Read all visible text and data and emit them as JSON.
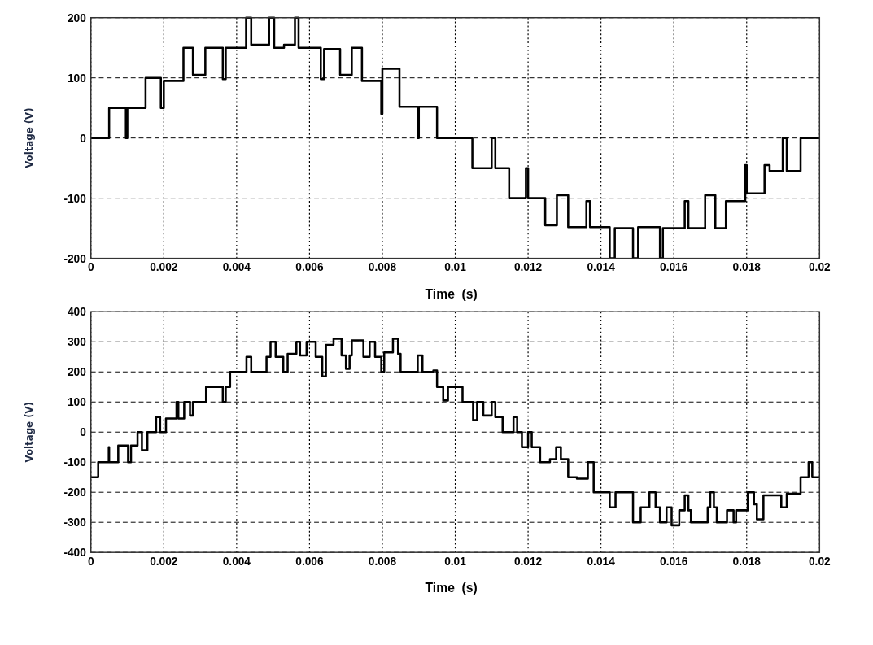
{
  "chart_data": [
    {
      "type": "step",
      "xlabel": "Time  (s)",
      "ylabel": "Voltage (V)",
      "xlim": [
        0,
        0.02
      ],
      "ylim": [
        -200,
        200
      ],
      "xticks": [
        0,
        0.002,
        0.004,
        0.006,
        0.008,
        0.01,
        0.012,
        0.014,
        0.016,
        0.018,
        0.02
      ],
      "yticks": [
        -200,
        -100,
        0,
        100,
        200
      ],
      "grid": true,
      "series": [
        {
          "color": "#000000",
          "x": [
            0,
            0.0005,
            0.00096,
            0.001,
            0.0015,
            0.00192,
            0.002,
            0.00254,
            0.0028,
            0.00314,
            0.00362,
            0.0037,
            0.00426,
            0.0044,
            0.00489,
            0.00503,
            0.0053,
            0.0056,
            0.0057,
            0.00631,
            0.0064,
            0.00684,
            0.00716,
            0.00744,
            0.00797,
            0.008,
            0.00847,
            0.00897,
            0.009,
            0.0095,
            0.01047,
            0.011,
            0.0111,
            0.01148,
            0.01194,
            0.012,
            0.01247,
            0.01279,
            0.0131,
            0.0136,
            0.0137,
            0.01424,
            0.01438,
            0.01488,
            0.01502,
            0.01562,
            0.0157,
            0.0163,
            0.0164,
            0.01686,
            0.01714,
            0.01743,
            0.01796,
            0.018,
            0.01849,
            0.01863,
            0.01899,
            0.0191,
            0.01948,
            0.02
          ],
          "values": [
            0,
            50,
            0,
            50,
            100,
            50,
            95,
            150,
            105,
            150,
            98,
            150,
            200,
            155,
            200,
            150,
            155,
            200,
            150,
            98,
            148,
            105,
            150,
            95,
            40,
            115,
            52,
            0,
            52,
            0,
            -50,
            0,
            -50,
            -100,
            -50,
            -100,
            -145,
            -95,
            -148,
            -105,
            -148,
            -200,
            -150,
            -200,
            -148,
            -200,
            -150,
            -105,
            -150,
            -95,
            -150,
            -105,
            -45,
            -92,
            -45,
            -55,
            0,
            -55,
            0,
            0
          ]
        }
      ]
    },
    {
      "type": "step",
      "xlabel": "Time  (s)",
      "ylabel": "Voltage (V)",
      "xlim": [
        0,
        0.02
      ],
      "ylim": [
        -400,
        400
      ],
      "xticks": [
        0,
        0.002,
        0.004,
        0.006,
        0.008,
        0.01,
        0.012,
        0.014,
        0.016,
        0.018,
        0.02
      ],
      "yticks": [
        -400,
        -300,
        -200,
        -100,
        0,
        100,
        200,
        300,
        400
      ],
      "grid": true,
      "series": [
        {
          "color": "#000000",
          "x": [
            0,
            0.0002,
            0.00049,
            0.0005,
            0.00075,
            0.00102,
            0.0011,
            0.00128,
            0.0014,
            0.00155,
            0.00179,
            0.0019,
            0.00206,
            0.00235,
            0.0024,
            0.00256,
            0.00272,
            0.0028,
            0.00316,
            0.00362,
            0.0037,
            0.00382,
            0.00427,
            0.0044,
            0.00482,
            0.00493,
            0.00507,
            0.00528,
            0.0054,
            0.00564,
            0.00574,
            0.00592,
            0.00617,
            0.00635,
            0.00645,
            0.00666,
            0.00688,
            0.007,
            0.0071,
            0.00716,
            0.00748,
            0.00765,
            0.0078,
            0.00797,
            0.00805,
            0.00829,
            0.00843,
            0.0085,
            0.00897,
            0.0091,
            0.0094,
            0.0095,
            0.00967,
            0.0098,
            0.0102,
            0.01049,
            0.0106,
            0.01077,
            0.011,
            0.0111,
            0.0113,
            0.0116,
            0.0117,
            0.01183,
            0.012,
            0.0121,
            0.01233,
            0.0126,
            0.01277,
            0.0129,
            0.0131,
            0.01334,
            0.01364,
            0.0138,
            0.01424,
            0.0144,
            0.01488,
            0.01509,
            0.01533,
            0.0155,
            0.01562,
            0.0158,
            0.01594,
            0.01615,
            0.0163,
            0.0164,
            0.01647,
            0.01693,
            0.017,
            0.0171,
            0.01718,
            0.01746,
            0.01764,
            0.01771,
            0.01803,
            0.0182,
            0.01828,
            0.01846,
            0.01895,
            0.0191,
            0.01948,
            0.0197,
            0.0198,
            0.02
          ],
          "values": [
            -150,
            -100,
            -50,
            -100,
            -45,
            -100,
            -45,
            0,
            -60,
            0,
            50,
            0,
            45,
            100,
            45,
            100,
            55,
            100,
            150,
            100,
            150,
            200,
            250,
            200,
            250,
            300,
            250,
            200,
            260,
            300,
            255,
            300,
            250,
            185,
            290,
            310,
            255,
            210,
            255,
            305,
            250,
            300,
            250,
            200,
            265,
            310,
            260,
            200,
            255,
            200,
            205,
            150,
            105,
            150,
            100,
            40,
            100,
            55,
            100,
            50,
            0,
            50,
            0,
            -50,
            0,
            -50,
            -100,
            -90,
            -50,
            -90,
            -150,
            -155,
            -100,
            -200,
            -250,
            -200,
            -300,
            -250,
            -200,
            -250,
            -300,
            -250,
            -310,
            -260,
            -210,
            -260,
            -300,
            -250,
            -200,
            -250,
            -300,
            -260,
            -300,
            -260,
            -200,
            -240,
            -290,
            -210,
            -250,
            -205,
            -150,
            -100,
            -150,
            -150
          ]
        }
      ]
    }
  ]
}
